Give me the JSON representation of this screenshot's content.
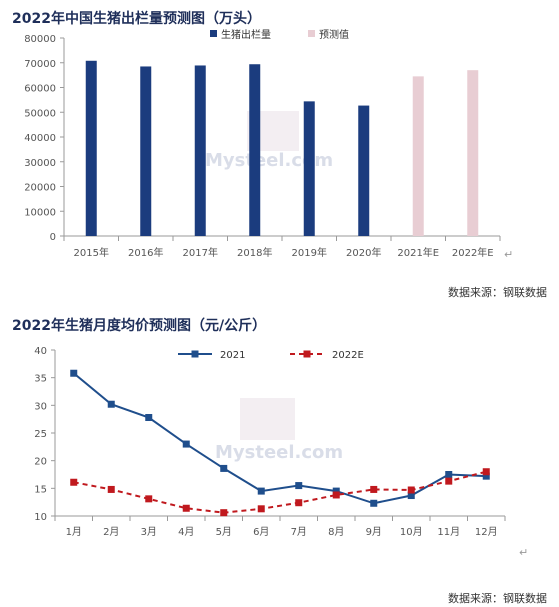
{
  "charts": {
    "chart1_title": "2022年中国生猪出栏量预测图（万头）",
    "chart1_source": "数据来源：钢联数据",
    "chart2_title": "2022年生猪月度均价预测图（元/公斤）",
    "chart2_source": "数据来源：钢联数据",
    "return_mark": "↵"
  },
  "watermark": {
    "text1": "Mysteel.com",
    "text2": "Mysteel.com"
  },
  "colors": {
    "navy": "#1b3c7e",
    "pink": "#e8cdd3",
    "blue_line": "#1f4e8c",
    "red_line": "#c0191e",
    "title": "#1f2f5a"
  },
  "chart_data": [
    {
      "type": "bar",
      "title": "2022年中国生猪出栏量预测图（万头）",
      "categories": [
        "2015年",
        "2016年",
        "2017年",
        "2018年",
        "2019年",
        "2020年",
        "2021年E",
        "2022年E"
      ],
      "series": [
        {
          "name": "生猪出栏量",
          "color": "#1b3c7e",
          "values": [
            70800,
            68500,
            68900,
            69400,
            54400,
            52700,
            null,
            null
          ]
        },
        {
          "name": "预测值",
          "color": "#e8cdd3",
          "values": [
            null,
            null,
            null,
            null,
            null,
            null,
            64500,
            67000
          ]
        }
      ],
      "ylim": [
        0,
        80000
      ],
      "yticks": [
        "0",
        "10000",
        "20000",
        "30000",
        "40000",
        "50000",
        "60000",
        "70000",
        "80000"
      ],
      "grid": false,
      "legend": "top"
    },
    {
      "type": "line",
      "title": "2022年生猪月度均价预测图（元/公斤）",
      "categories": [
        "1月",
        "2月",
        "3月",
        "4月",
        "5月",
        "6月",
        "7月",
        "8月",
        "9月",
        "10月",
        "11月",
        "12月"
      ],
      "series": [
        {
          "name": "2021",
          "color": "#1f4e8c",
          "style": "solid",
          "values": [
            35.8,
            30.2,
            27.8,
            23.0,
            18.6,
            14.5,
            15.5,
            14.5,
            12.3,
            13.7,
            17.5,
            17.2
          ]
        },
        {
          "name": "2022E",
          "color": "#c0191e",
          "style": "dashed",
          "values": [
            16.1,
            14.8,
            13.1,
            11.4,
            10.6,
            11.3,
            12.4,
            13.8,
            14.8,
            14.7,
            16.3,
            18.0
          ]
        }
      ],
      "ylim": [
        10,
        40
      ],
      "yticks": [
        "10",
        "15",
        "20",
        "25",
        "30",
        "35",
        "40"
      ],
      "grid": false,
      "legend": "top"
    }
  ]
}
